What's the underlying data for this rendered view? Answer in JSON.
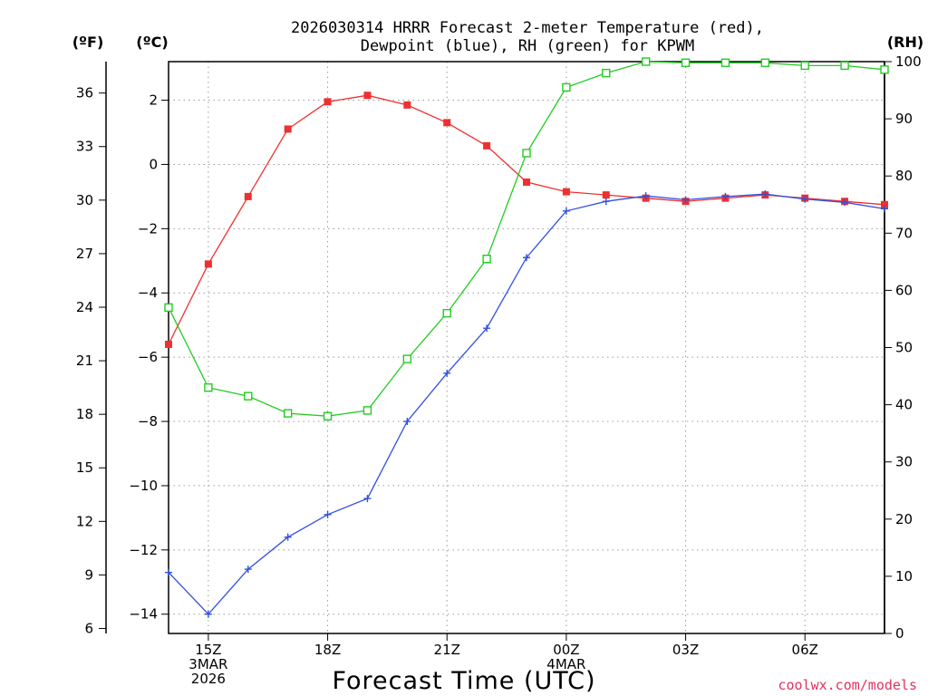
{
  "chart_data": {
    "type": "line",
    "title_line1": "2026030314 HRRR Forecast 2-meter Temperature (red),",
    "title_line2": "Dewpoint (blue), RH (green) for KPWM",
    "units": {
      "fahrenheit": "(ºF)",
      "celsius": "(ºC)",
      "rh": "(RH)"
    },
    "xlabel": "Forecast Time (UTC)",
    "credit": "coolwx.com/models",
    "x_hours": [
      14,
      15,
      16,
      17,
      18,
      19,
      20,
      21,
      22,
      23,
      24,
      25,
      26,
      27,
      28,
      29,
      30,
      31,
      32
    ],
    "xlim": [
      14,
      32
    ],
    "x_ticks": [
      {
        "hour": 15,
        "lines": [
          "15Z",
          "3MAR",
          "2026"
        ]
      },
      {
        "hour": 18,
        "lines": [
          "18Z"
        ]
      },
      {
        "hour": 21,
        "lines": [
          "21Z"
        ]
      },
      {
        "hour": 24,
        "lines": [
          "00Z",
          "4MAR"
        ]
      },
      {
        "hour": 27,
        "lines": [
          "03Z"
        ]
      },
      {
        "hour": 30,
        "lines": [
          "06Z"
        ]
      }
    ],
    "celsius_axis": {
      "ylim": [
        -14.6,
        3.2
      ],
      "ticks": [
        "2",
        "0",
        "-2",
        "-4",
        "-6",
        "-8",
        "-10",
        "-12",
        "-14"
      ],
      "tick_values": [
        2,
        0,
        -2,
        -4,
        -6,
        -8,
        -10,
        -12,
        -14
      ]
    },
    "fahrenheit_axis": {
      "ticks": [
        "36",
        "33",
        "30",
        "27",
        "24",
        "21",
        "18",
        "15",
        "12",
        "9",
        "6"
      ],
      "tick_values": [
        36,
        33,
        30,
        27,
        24,
        21,
        18,
        15,
        12,
        9,
        6
      ]
    },
    "rh_axis": {
      "ylim": [
        0,
        100
      ],
      "ticks": [
        "100",
        "90",
        "80",
        "70",
        "60",
        "50",
        "40",
        "30",
        "20",
        "10",
        "0"
      ],
      "tick_values": [
        100,
        90,
        80,
        70,
        60,
        50,
        40,
        30,
        20,
        10,
        0
      ]
    },
    "series": [
      {
        "name": "Temperature",
        "axis": "celsius",
        "color": "#ee3030",
        "marker": "filled-square",
        "values": [
          -5.6,
          -3.1,
          -1.0,
          1.1,
          1.95,
          2.15,
          1.85,
          1.3,
          0.58,
          -0.55,
          -0.85,
          -0.95,
          -1.05,
          -1.15,
          -1.05,
          -0.95,
          -1.05,
          -1.15,
          -1.25
        ]
      },
      {
        "name": "Dewpoint",
        "axis": "celsius",
        "color": "#3050e0",
        "marker": "plus",
        "values": [
          -12.7,
          -14.0,
          -12.6,
          -11.6,
          -10.9,
          -10.4,
          -8.0,
          -6.5,
          -5.1,
          -2.9,
          -1.45,
          -1.15,
          -0.98,
          -1.1,
          -1.0,
          -0.92,
          -1.08,
          -1.18,
          -1.38
        ]
      },
      {
        "name": "RH",
        "axis": "rh",
        "color": "#22cc22",
        "marker": "open-square",
        "values": [
          57,
          43,
          41.5,
          38.5,
          38,
          39,
          48,
          56,
          65.5,
          84,
          95.5,
          98,
          100,
          99.8,
          99.8,
          99.8,
          99.3,
          99.3,
          98.6
        ]
      }
    ]
  }
}
